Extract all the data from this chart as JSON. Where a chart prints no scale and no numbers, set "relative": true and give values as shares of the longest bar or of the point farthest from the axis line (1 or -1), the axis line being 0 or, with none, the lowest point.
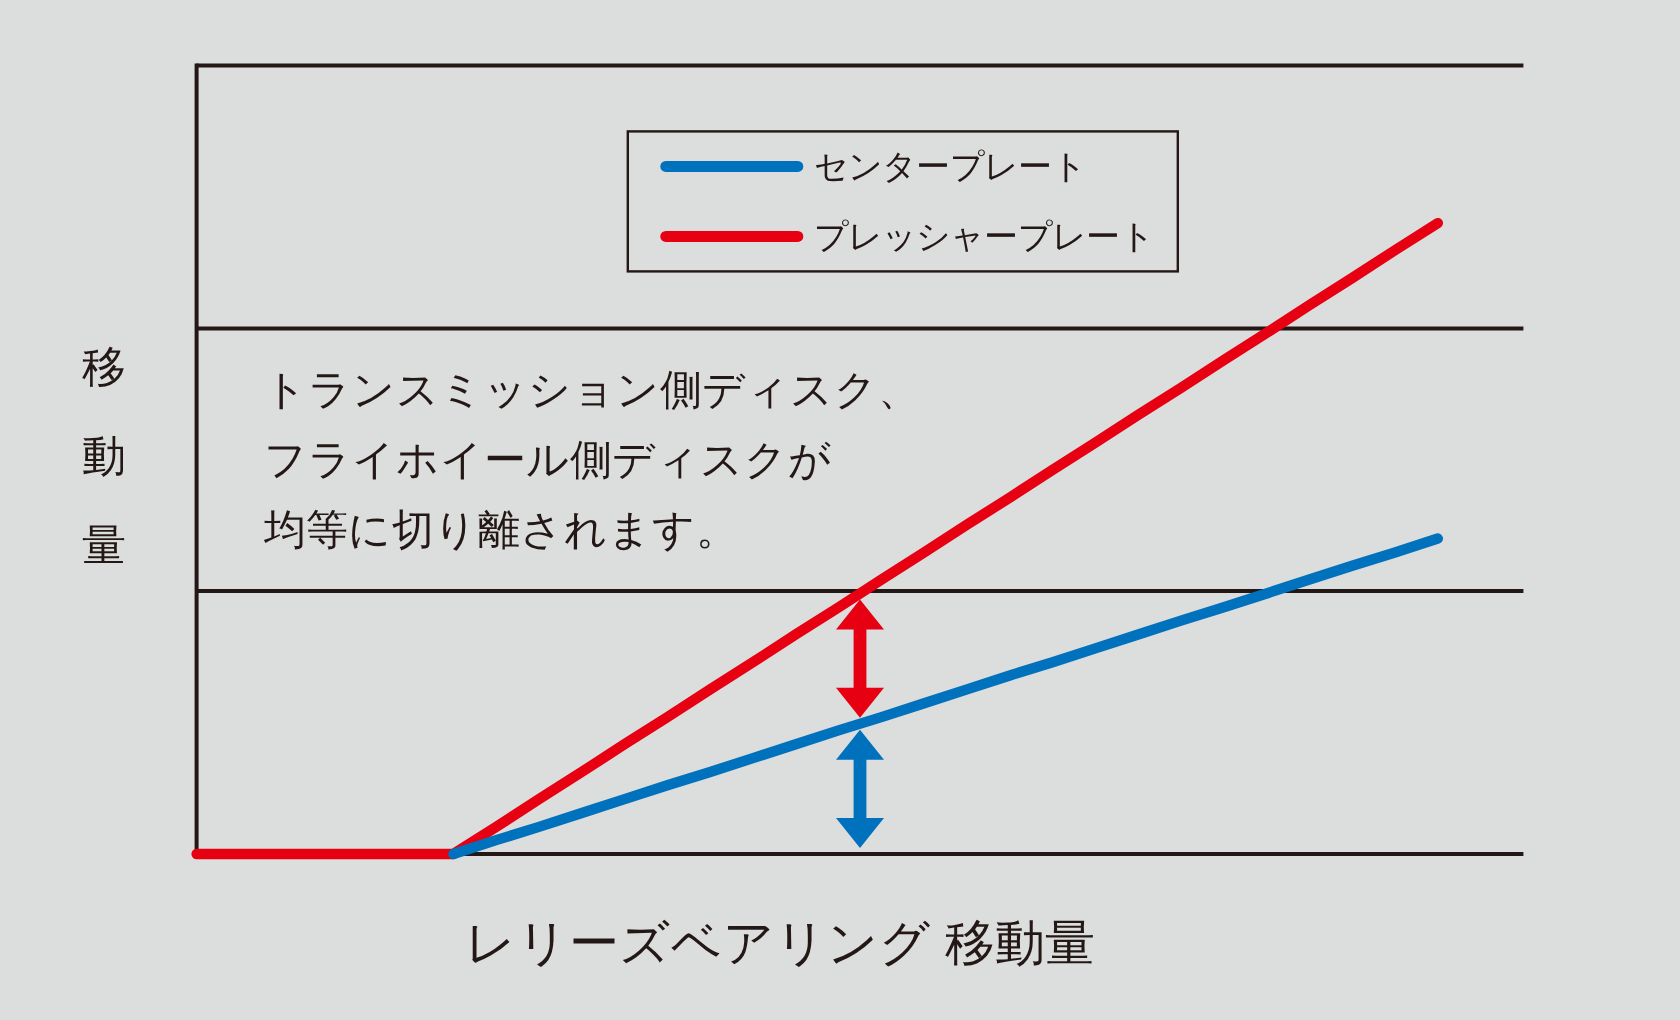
{
  "chart_data": {
    "type": "line",
    "relative": true,
    "categories": [
      null,
      null,
      null,
      null,
      null,
      null,
      null,
      null,
      null,
      null,
      null,
      null,
      null,
      null,
      null,
      null,
      null,
      null,
      null,
      null,
      null,
      null,
      null,
      null,
      null,
      null,
      null,
      null,
      null,
      null,
      null,
      null
    ],
    "series": [
      {
        "name": "センタープレート",
        "color": "#0071bc",
        "values": [
          null,
          null,
          null,
          null,
          null,
          null,
          0,
          0.022,
          0.043,
          0.065,
          0.087,
          0.109,
          0.13,
          0.152,
          0.174,
          0.196,
          0.217,
          0.239,
          0.261,
          0.283,
          0.304,
          0.326,
          0.348,
          0.37,
          0.391,
          0.413,
          0.435,
          0.457,
          0.478,
          0.5,
          null,
          null
        ]
      },
      {
        "name": "プレッシャープレート",
        "color": "#e60012",
        "values": [
          0,
          0,
          0,
          0,
          0,
          0,
          0,
          0.043,
          0.087,
          0.13,
          0.174,
          0.217,
          0.261,
          0.304,
          0.348,
          0.391,
          0.435,
          0.478,
          0.522,
          0.565,
          0.609,
          0.652,
          0.696,
          0.739,
          0.783,
          0.826,
          0.87,
          0.913,
          0.957,
          1,
          null,
          null
        ]
      }
    ],
    "xlabel": "レリーズベアリング 移動量",
    "ylabel": "移動量",
    "annotations": [
      "トランスミッション側ディスク、フライホイール側ディスクが均等に切り離されます。"
    ],
    "legend": "top",
    "ref_lines": [
      {
        "axis": "y",
        "value": 0.417,
        "color": "#231815"
      },
      {
        "axis": "y",
        "value": 0.833,
        "color": "#231815"
      },
      {
        "axis": "y",
        "value": 1.25,
        "color": "#231815"
      }
    ]
  }
}
